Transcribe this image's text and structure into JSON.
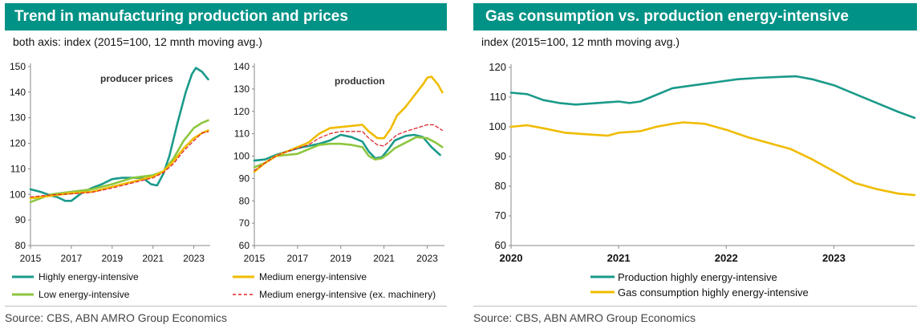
{
  "left_panel": {
    "title": "Trend in manufacturing production and prices",
    "subtitle": "both axis: index (2015=100, 12 mnth moving avg.)",
    "source": "Source: CBS, ABN AMRO Group Economics"
  },
  "right_panel": {
    "title": "Gas consumption vs. production energy-intensive",
    "subtitle": "index (2015=100, 12 mnth moving avg.)",
    "source": "Source: CBS, ABN AMRO Group Economics"
  },
  "colors": {
    "header": "#009286",
    "highly": "#1a9a8a",
    "medium": "#f0bc00",
    "low": "#8dc63f",
    "medium_ex": "#e0262b"
  },
  "legend_left": [
    {
      "label": "Highly energy-intensive",
      "color": "#1a9a8a",
      "dashed": false
    },
    {
      "label": "Low energy-intensive",
      "color": "#8dc63f",
      "dashed": false
    },
    {
      "label": "Medium energy-intensive",
      "color": "#f0bc00",
      "dashed": false
    },
    {
      "label": "Medium energy-intensive (ex. machinery)",
      "color": "#e0262b",
      "dashed": true
    }
  ],
  "legend_right": [
    {
      "label": "Production highly energy-intensive",
      "color": "#1a9a8a"
    },
    {
      "label": "Gas consumption highly energy-intensive",
      "color": "#f0bc00"
    }
  ],
  "chart_data": [
    {
      "type": "line",
      "title": "producer prices",
      "x_ticks": [
        "2015",
        "2017",
        "2019",
        "2021",
        "2023"
      ],
      "xlim": [
        2015,
        2023.8
      ],
      "ylim": [
        80,
        150
      ],
      "y_ticks": [
        80,
        90,
        100,
        110,
        120,
        130,
        140,
        150
      ],
      "series": [
        {
          "name": "Highly energy-intensive",
          "color": "#1a9a8a",
          "dashed": false,
          "x": [
            2015,
            2015.5,
            2016,
            2016.3,
            2016.7,
            2017,
            2017.5,
            2018,
            2018.5,
            2019,
            2019.5,
            2020,
            2020.5,
            2020.9,
            2021.2,
            2021.5,
            2021.8,
            2022.2,
            2022.6,
            2022.9,
            2023.1,
            2023.4,
            2023.7
          ],
          "y": [
            102,
            101,
            99.5,
            99,
            97.5,
            97.5,
            100.5,
            102.5,
            104,
            106,
            106.5,
            106.5,
            106.5,
            104,
            103.5,
            108,
            115,
            128,
            140,
            147,
            149.5,
            148,
            145
          ]
        },
        {
          "name": "Low energy-intensive",
          "color": "#8dc63f",
          "dashed": false,
          "x": [
            2015,
            2016,
            2017,
            2018,
            2019,
            2020,
            2021,
            2021.5,
            2022,
            2022.5,
            2023,
            2023.4,
            2023.7
          ],
          "y": [
            97,
            100,
            101,
            102,
            104,
            106.5,
            107.5,
            109,
            114,
            121,
            126,
            128,
            129
          ]
        },
        {
          "name": "Medium energy-intensive",
          "color": "#f0bc00",
          "dashed": false,
          "x": [
            2015,
            2016,
            2017,
            2018,
            2019,
            2020,
            2021,
            2021.5,
            2022,
            2022.5,
            2023,
            2023.4,
            2023.7
          ],
          "y": [
            98.5,
            99.5,
            100.5,
            101,
            103,
            105,
            107,
            109,
            113,
            118,
            122,
            124,
            125
          ]
        },
        {
          "name": "Medium energy-intensive (ex. machinery)",
          "color": "#e0262b",
          "dashed": true,
          "x": [
            2015,
            2016,
            2017,
            2018,
            2019,
            2020,
            2021,
            2021.5,
            2022,
            2022.5,
            2023,
            2023.4,
            2023.7
          ],
          "y": [
            99,
            99.8,
            100.2,
            100.8,
            102.5,
            104.5,
            106.5,
            108.5,
            112,
            117,
            121,
            124,
            124.5
          ]
        }
      ]
    },
    {
      "type": "line",
      "title": "production",
      "x_ticks": [
        "2015",
        "2017",
        "2019",
        "2021",
        "2023"
      ],
      "xlim": [
        2015,
        2023.8
      ],
      "ylim": [
        60,
        140
      ],
      "y_ticks": [
        60,
        70,
        80,
        90,
        100,
        110,
        120,
        130,
        140
      ],
      "series": [
        {
          "name": "Highly energy-intensive",
          "color": "#1a9a8a",
          "dashed": false,
          "x": [
            2015,
            2015.5,
            2016,
            2016.5,
            2017,
            2017.5,
            2018,
            2018.5,
            2019,
            2019.5,
            2020,
            2020.3,
            2020.6,
            2020.9,
            2021.2,
            2021.5,
            2022,
            2022.4,
            2022.8,
            2023.2,
            2023.6
          ],
          "y": [
            98,
            98.5,
            100.5,
            102,
            103.5,
            104.5,
            105.5,
            107,
            109.5,
            108.5,
            106.5,
            102,
            99,
            99.5,
            103,
            107,
            109,
            109.5,
            108.5,
            104,
            100.5
          ]
        },
        {
          "name": "Low energy-intensive",
          "color": "#8dc63f",
          "dashed": false,
          "x": [
            2015,
            2015.5,
            2016,
            2017,
            2017.5,
            2018,
            2018.5,
            2019,
            2019.5,
            2020,
            2020.3,
            2020.6,
            2020.9,
            2021.2,
            2021.5,
            2022,
            2022.5,
            2023,
            2023.4,
            2023.7
          ],
          "y": [
            95,
            97,
            100,
            101,
            103,
            105,
            105.5,
            105.5,
            105,
            104,
            100,
            98.5,
            99,
            101,
            103.5,
            106,
            108.5,
            108,
            106,
            104
          ]
        },
        {
          "name": "Medium energy-intensive",
          "color": "#f0bc00",
          "dashed": false,
          "x": [
            2015,
            2015.5,
            2016,
            2016.5,
            2017,
            2017.5,
            2018,
            2018.5,
            2019,
            2019.5,
            2020,
            2020.3,
            2020.7,
            2021,
            2021.3,
            2021.6,
            2022,
            2022.4,
            2022.8,
            2023,
            2023.2,
            2023.5,
            2023.7
          ],
          "y": [
            93,
            97,
            100,
            102,
            104,
            106,
            110,
            112.5,
            113,
            113.5,
            114,
            111,
            108,
            108,
            112,
            118,
            122,
            127,
            132,
            135,
            135.5,
            132,
            128.5
          ]
        },
        {
          "name": "Medium energy-intensive (ex. machinery)",
          "color": "#e0262b",
          "dashed": true,
          "x": [
            2015,
            2015.5,
            2016,
            2016.5,
            2017,
            2017.5,
            2018,
            2018.5,
            2019,
            2019.5,
            2020,
            2020.3,
            2020.7,
            2021,
            2021.3,
            2021.6,
            2022,
            2022.5,
            2023,
            2023.3,
            2023.7
          ],
          "y": [
            93.5,
            97,
            100,
            102,
            103.5,
            105,
            108,
            110,
            111,
            111,
            111,
            108,
            105,
            104.5,
            107,
            109.5,
            111,
            112.5,
            114,
            114,
            111.5
          ]
        }
      ]
    },
    {
      "type": "line",
      "title": "",
      "x_ticks": [
        "2020",
        "2021",
        "2022",
        "2023"
      ],
      "xlim": [
        2020,
        2023.75
      ],
      "ylim": [
        60,
        120
      ],
      "y_ticks": [
        60,
        70,
        80,
        90,
        100,
        110,
        120
      ],
      "series": [
        {
          "name": "Production highly energy-intensive",
          "color": "#1a9a8a",
          "dashed": false,
          "x": [
            2020,
            2020.15,
            2020.3,
            2020.45,
            2020.6,
            2020.8,
            2021,
            2021.1,
            2021.2,
            2021.3,
            2021.5,
            2021.7,
            2021.9,
            2022.1,
            2022.3,
            2022.5,
            2022.65,
            2022.8,
            2023,
            2023.2,
            2023.4,
            2023.6,
            2023.75
          ],
          "y": [
            111.5,
            111,
            109,
            108,
            107.5,
            108,
            108.5,
            108,
            108.5,
            110,
            113,
            114,
            115,
            116,
            116.5,
            116.8,
            117,
            116,
            114,
            111,
            108,
            105,
            103
          ]
        },
        {
          "name": "Gas consumption highly energy-intensive",
          "color": "#f0bc00",
          "dashed": false,
          "x": [
            2020,
            2020.15,
            2020.3,
            2020.5,
            2020.7,
            2020.9,
            2021,
            2021.2,
            2021.35,
            2021.5,
            2021.6,
            2021.8,
            2022,
            2022.2,
            2022.4,
            2022.6,
            2022.8,
            2023,
            2023.2,
            2023.4,
            2023.6,
            2023.75
          ],
          "y": [
            100,
            100.5,
            99.5,
            98,
            97.5,
            97,
            98,
            98.5,
            100,
            101,
            101.5,
            101,
            99,
            96.5,
            94.5,
            92.5,
            89,
            85,
            81,
            79,
            77.5,
            77
          ]
        }
      ]
    }
  ]
}
